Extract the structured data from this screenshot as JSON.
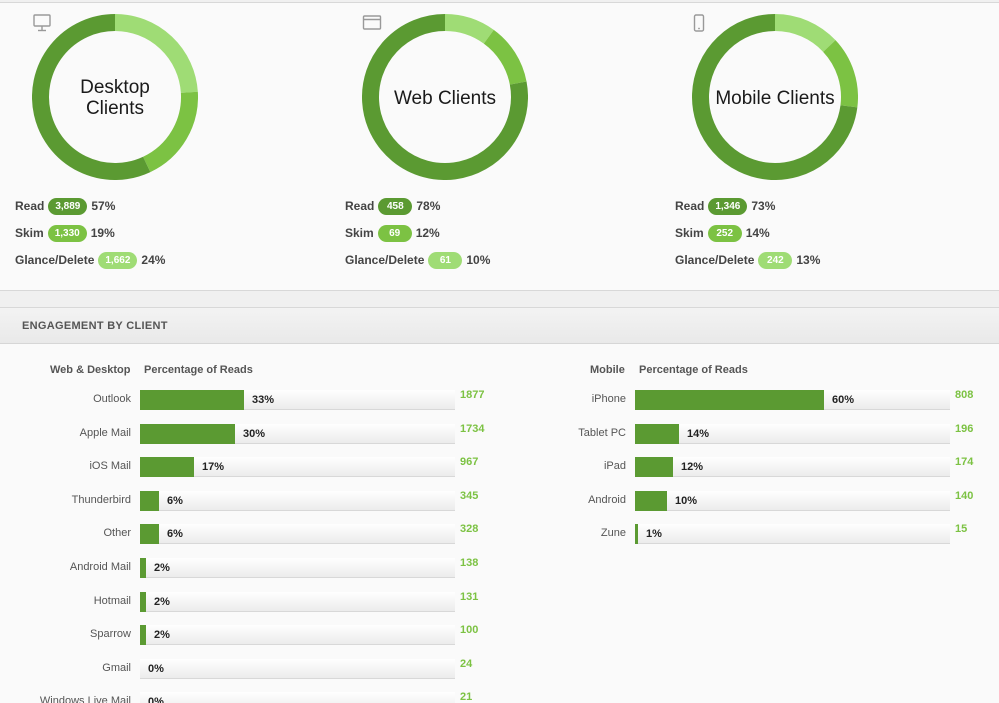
{
  "summary": {
    "clients": [
      {
        "key": "desktop",
        "title": "Desktop Clients",
        "icon": "desktop-monitor-icon",
        "stats": [
          {
            "label": "Read",
            "count": "3,889",
            "pct": "57%",
            "kind": "read"
          },
          {
            "label": "Skim",
            "count": "1,330",
            "pct": "19%",
            "kind": "skim"
          },
          {
            "label": "Glance/Delete",
            "count": "1,662",
            "pct": "24%",
            "kind": "glance"
          }
        ],
        "ring": [
          57,
          19,
          24
        ]
      },
      {
        "key": "web",
        "title": "Web Clients",
        "icon": "browser-window-icon",
        "stats": [
          {
            "label": "Read",
            "count": "458",
            "pct": "78%",
            "kind": "read"
          },
          {
            "label": "Skim",
            "count": "69",
            "pct": "12%",
            "kind": "skim"
          },
          {
            "label": "Glance/Delete",
            "count": "61",
            "pct": "10%",
            "kind": "glance"
          }
        ],
        "ring": [
          78,
          12,
          10
        ]
      },
      {
        "key": "mobile",
        "title": "Mobile Clients",
        "icon": "mobile-phone-icon",
        "stats": [
          {
            "label": "Read",
            "count": "1,346",
            "pct": "73%",
            "kind": "read"
          },
          {
            "label": "Skim",
            "count": "252",
            "pct": "14%",
            "kind": "skim"
          },
          {
            "label": "Glance/Delete",
            "count": "242",
            "pct": "13%",
            "kind": "glance"
          }
        ],
        "ring": [
          73,
          14,
          13
        ]
      }
    ],
    "colors": {
      "read": "#5b9a32",
      "skim": "#7cc243",
      "glance": "#9fdc75"
    }
  },
  "engagement": {
    "title": "ENGAGEMENT BY CLIENT",
    "groups": [
      {
        "key": "web-desktop",
        "col_label": "Web & Desktop",
        "col_metric": "Percentage of Reads",
        "rows": [
          {
            "name": "Outlook",
            "pct": 33,
            "pct_label": "33%",
            "count": "1877"
          },
          {
            "name": "Apple Mail",
            "pct": 30,
            "pct_label": "30%",
            "count": "1734"
          },
          {
            "name": "iOS Mail",
            "pct": 17,
            "pct_label": "17%",
            "count": "967"
          },
          {
            "name": "Thunderbird",
            "pct": 6,
            "pct_label": "6%",
            "count": "345"
          },
          {
            "name": "Other",
            "pct": 6,
            "pct_label": "6%",
            "count": "328"
          },
          {
            "name": "Android Mail",
            "pct": 2,
            "pct_label": "2%",
            "count": "138"
          },
          {
            "name": "Hotmail",
            "pct": 2,
            "pct_label": "2%",
            "count": "131"
          },
          {
            "name": "Sparrow",
            "pct": 2,
            "pct_label": "2%",
            "count": "100"
          },
          {
            "name": "Gmail",
            "pct": 0,
            "pct_label": "0%",
            "count": "24"
          },
          {
            "name": "Windows Live Mail",
            "pct": 0,
            "pct_label": "0%",
            "count": "21"
          }
        ]
      },
      {
        "key": "mobile",
        "col_label": "Mobile",
        "col_metric": "Percentage of Reads",
        "rows": [
          {
            "name": "iPhone",
            "pct": 60,
            "pct_label": "60%",
            "count": "808"
          },
          {
            "name": "Tablet PC",
            "pct": 14,
            "pct_label": "14%",
            "count": "196"
          },
          {
            "name": "iPad",
            "pct": 12,
            "pct_label": "12%",
            "count": "174"
          },
          {
            "name": "Android",
            "pct": 10,
            "pct_label": "10%",
            "count": "140"
          },
          {
            "name": "Zune",
            "pct": 1,
            "pct_label": "1%",
            "count": "15"
          }
        ]
      }
    ]
  }
}
